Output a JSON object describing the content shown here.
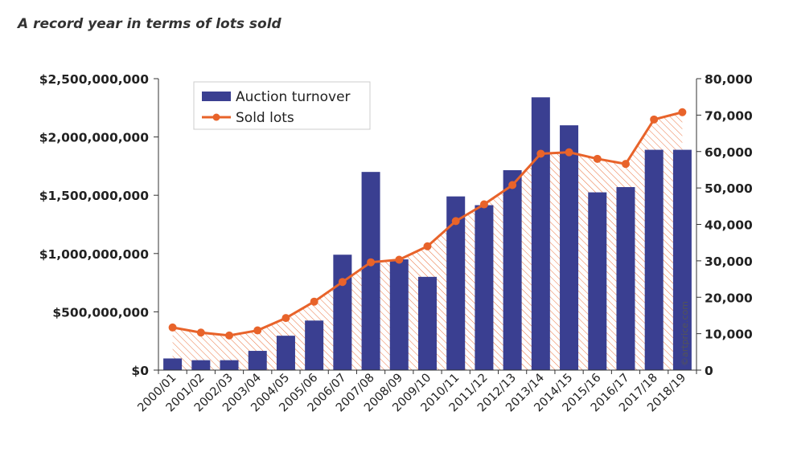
{
  "chart_data": {
    "type": "bar+line",
    "title": "A record year in terms of lots sold",
    "categories": [
      "2000/01",
      "2001/02",
      "2002/03",
      "2003/04",
      "2004/05",
      "2005/06",
      "2006/07",
      "2007/08",
      "2008/09",
      "2009/10",
      "2010/11",
      "2011/12",
      "2012/13",
      "2013/14",
      "2014/15",
      "2015/16",
      "2016/17",
      "2017/18",
      "2018/19"
    ],
    "series": [
      {
        "name": "Auction turnover",
        "type": "bar",
        "axis": "left",
        "color": "#3a3f91",
        "values": [
          100000000,
          85000000,
          85000000,
          165000000,
          295000000,
          425000000,
          990000000,
          1700000000,
          950000000,
          800000000,
          1490000000,
          1415000000,
          1715000000,
          2340000000,
          2100000000,
          1525000000,
          1570000000,
          1890000000,
          1890000000
        ]
      },
      {
        "name": "Sold lots",
        "type": "line",
        "axis": "right",
        "color": "#e8632a",
        "values": [
          11700,
          10300,
          9500,
          10900,
          14300,
          18800,
          24200,
          29600,
          30300,
          34000,
          40900,
          45500,
          50800,
          59400,
          59800,
          58000,
          56600,
          68800,
          70800
        ]
      }
    ],
    "left_axis": {
      "ylim": [
        0,
        2500000000
      ],
      "ticks": [
        0,
        500000000,
        1000000000,
        1500000000,
        2000000000,
        2500000000
      ],
      "tick_labels": [
        "$0",
        "$500,000,000",
        "$1,000,000,000",
        "$1,500,000,000",
        "$2,000,000,000",
        "$2,500,000,000"
      ]
    },
    "right_axis": {
      "ylim": [
        0,
        80000
      ],
      "ticks": [
        0,
        10000,
        20000,
        30000,
        40000,
        50000,
        60000,
        70000,
        80000
      ],
      "tick_labels": [
        "0",
        "10,000",
        "20,000",
        "30,000",
        "40,000",
        "50,000",
        "60,000",
        "70,000",
        "80,000"
      ]
    },
    "legend": {
      "position": "top-left"
    },
    "grid": false,
    "watermark": "©artprice.com"
  }
}
